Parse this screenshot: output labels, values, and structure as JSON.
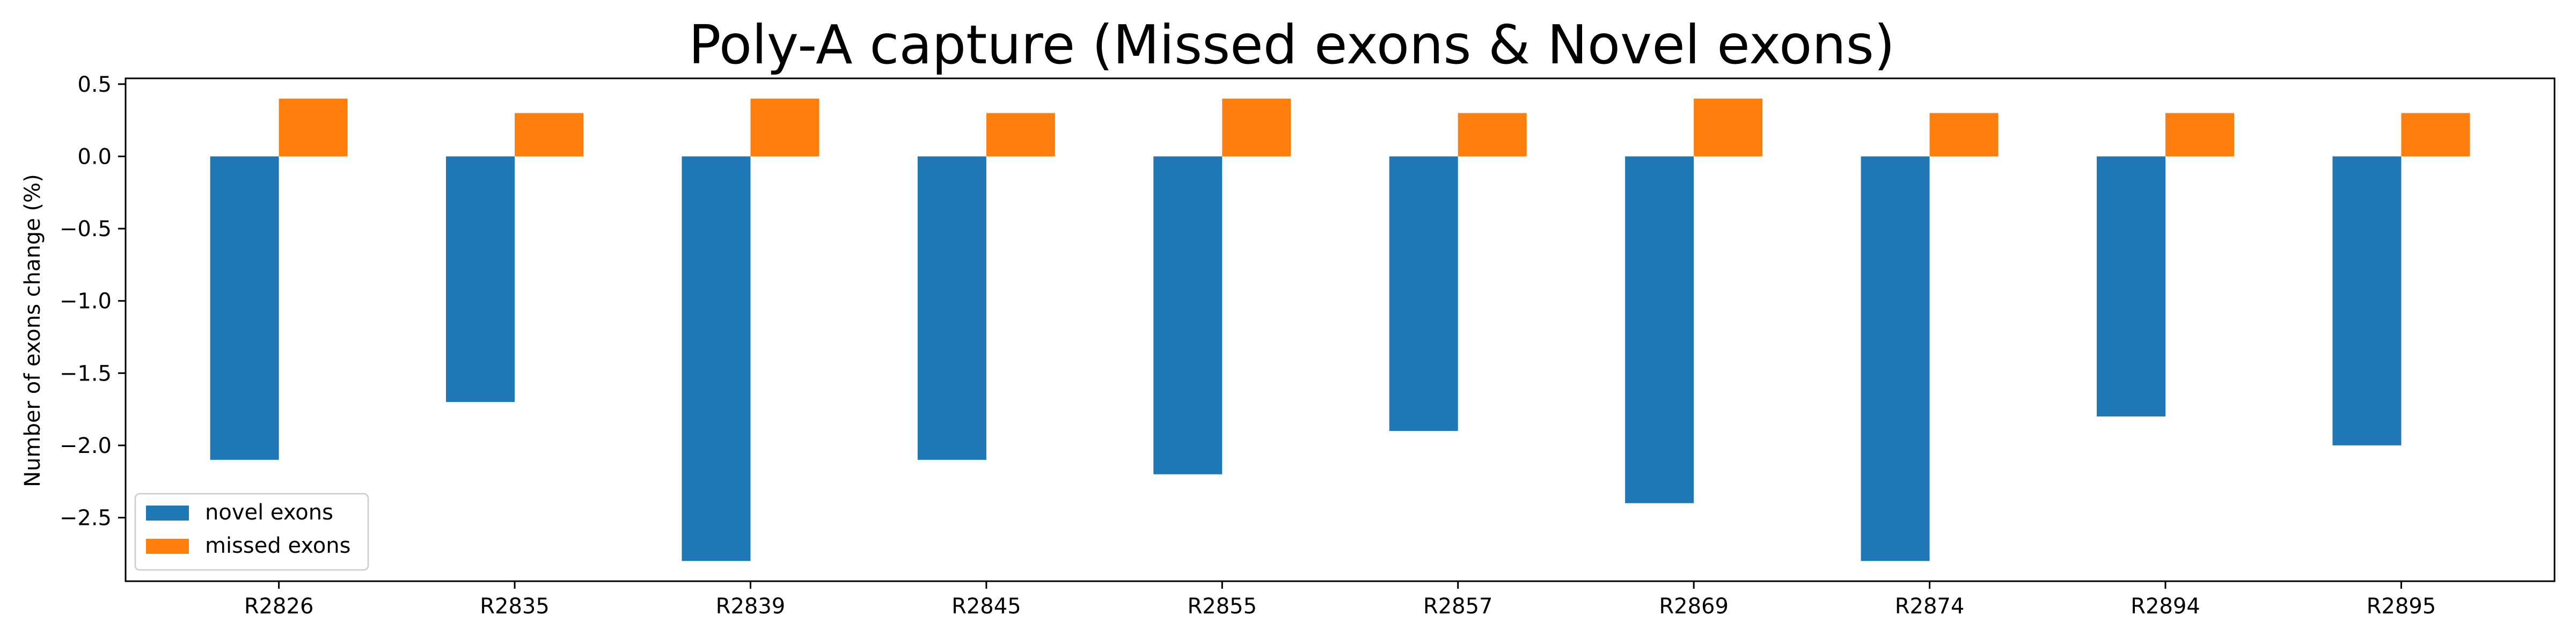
{
  "chart_data": {
    "type": "bar",
    "title": "Poly-A capture (Missed exons & Novel exons)",
    "xlabel": "",
    "ylabel": "Number of exons change (%)",
    "categories": [
      "R2826",
      "R2835",
      "R2839",
      "R2845",
      "R2855",
      "R2857",
      "R2869",
      "R2874",
      "R2894",
      "R2895"
    ],
    "series": [
      {
        "name": "novel exons",
        "color": "#1f77b4",
        "values": [
          -2.1,
          -1.7,
          -2.8,
          -2.1,
          -2.2,
          -1.9,
          -2.4,
          -2.8,
          -1.8,
          -2.0
        ]
      },
      {
        "name": "missed exons",
        "color": "#ff7f0e",
        "values": [
          0.4,
          0.3,
          0.4,
          0.3,
          0.4,
          0.3,
          0.4,
          0.3,
          0.3,
          0.3
        ]
      }
    ],
    "ylim": [
      -2.94,
      0.54
    ],
    "yticks": [
      "0.5",
      "0.0",
      "−0.5",
      "−1.0",
      "−1.5",
      "−2.0",
      "−2.5"
    ],
    "ytick_values": [
      0.5,
      0.0,
      -0.5,
      -1.0,
      -1.5,
      -2.0,
      -2.5
    ],
    "grid": false,
    "legend_position": "lower-left"
  }
}
